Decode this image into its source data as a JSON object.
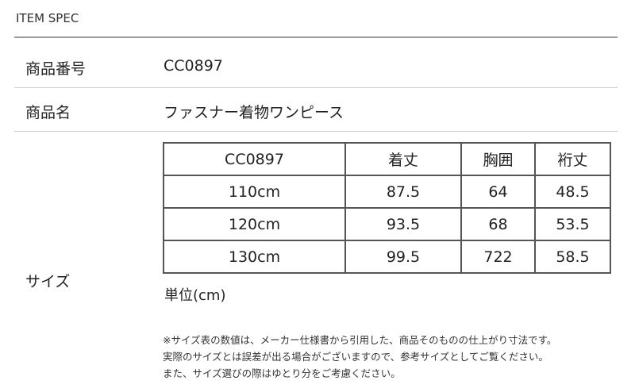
{
  "title": "ITEM SPEC",
  "rows": [
    {
      "label": "商品番号",
      "value": "CC0897"
    },
    {
      "label": "商品名",
      "value": "ファスナー着物ワンピース"
    },
    {
      "label": "サイズ"
    }
  ],
  "size_table": {
    "headers": [
      "CC0897",
      "着丈",
      "胸囲",
      "裄丈"
    ],
    "rows": [
      [
        "110cm",
        "87.5",
        "64",
        "48.5"
      ],
      [
        "120cm",
        "93.5",
        "68",
        "53.5"
      ],
      [
        "130cm",
        "99.5",
        "722",
        "58.5"
      ]
    ]
  },
  "unit": "単位(cm)",
  "notes": [
    "※サイズ表の数値は、メーカー仕様書から引用した、商品そのものの仕上がり寸法です。",
    "実際のサイズとは誤差が出る場合がございますので、参考サイズとしてご覧ください。",
    "また、サイズ選びの際はゆとり分をご考慮ください。"
  ]
}
